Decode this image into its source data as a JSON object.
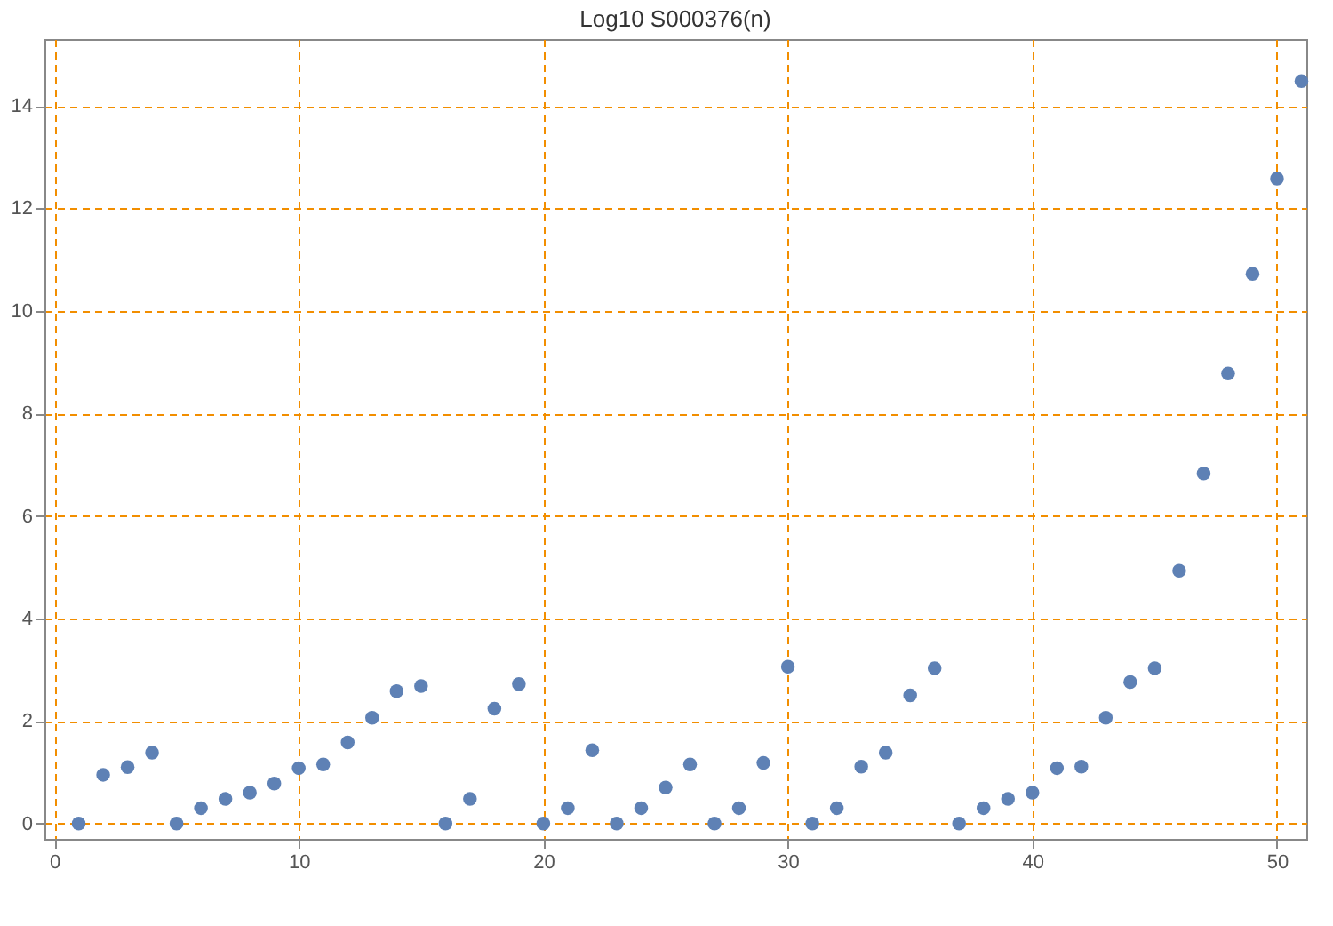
{
  "chart_data": {
    "type": "scatter",
    "title": "Log10 S000376(n)",
    "x": [
      1,
      2,
      3,
      4,
      5,
      6,
      7,
      8,
      9,
      10,
      11,
      12,
      13,
      14,
      15,
      16,
      17,
      18,
      19,
      20,
      21,
      22,
      23,
      24,
      25,
      26,
      27,
      28,
      29,
      30,
      31,
      32,
      33,
      34,
      35,
      36,
      37,
      38,
      39,
      40,
      41,
      42,
      43,
      44,
      45,
      46,
      47,
      48,
      49,
      50,
      51
    ],
    "series": [
      {
        "color": "#5e81b5",
        "values": [
          0,
          0.95,
          1.1,
          1.38,
          0,
          0.3,
          0.48,
          0.6,
          0.78,
          1.08,
          1.15,
          1.58,
          2.06,
          2.58,
          2.68,
          0,
          0.48,
          2.24,
          2.72,
          0,
          0.3,
          1.43,
          0,
          0.3,
          0.7,
          1.15,
          0,
          0.3,
          1.18,
          3.06,
          0,
          0.3,
          1.11,
          1.38,
          2.5,
          3.03,
          0,
          0.3,
          0.48,
          0.6,
          1.08,
          1.11,
          2.06,
          2.76,
          3.03,
          4.93,
          6.83,
          8.78,
          10.72,
          12.58,
          14.48
        ]
      }
    ],
    "xlim": [
      -0.4,
      51.2
    ],
    "xticks": [
      0,
      10,
      20,
      30,
      40,
      50
    ],
    "ylim": [
      -0.3,
      15.3
    ],
    "yticks": [
      0,
      2,
      4,
      6,
      8,
      10,
      12,
      14
    ],
    "grid": true,
    "marker": "circle",
    "legend": false
  }
}
